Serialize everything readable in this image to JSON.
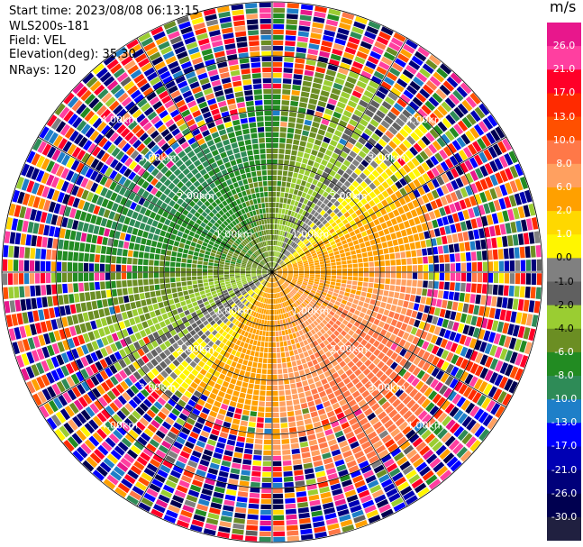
{
  "header": {
    "start_time": "Start time: 2023/08/08 06:13:15",
    "instrument": "WLS200s-181",
    "field": "Field: VEL",
    "elevation": "Elevation(deg): 35.30",
    "nrays": "NRays: 120"
  },
  "colorbar": {
    "unit": "m/s",
    "ticks": [
      "26.0",
      "21.0",
      "17.0",
      "13.0",
      "10.0",
      "8.0",
      "6.0",
      "2.0",
      "1.0",
      "0.0",
      "-1.0",
      "-2.0",
      "-4.0",
      "-6.0",
      "-8.0",
      "-10.0",
      "-13.0",
      "-17.0",
      "-21.0",
      "-26.0",
      "-30.0"
    ],
    "colors": [
      "#e8178c",
      "#ff3fa0",
      "#ff0028",
      "#ff2a00",
      "#ff5000",
      "#ff7848",
      "#ffa060",
      "#ffa000",
      "#ffd800",
      "#fff600",
      "#808080",
      "#606060",
      "#9acd32",
      "#6b8e23",
      "#228b22",
      "#2e8b57",
      "#1e7fc8",
      "#0000ff",
      "#0000b4",
      "#00007a",
      "#000050",
      "#202040"
    ]
  },
  "chart_data": {
    "type": "heatmap",
    "subtype": "PPI velocity scan (polar)",
    "field": "VEL",
    "units": "m/s",
    "nrays": 120,
    "elevation_deg": 35.3,
    "range_rings_km": [
      1.0,
      2.0,
      3.0,
      4.0
    ],
    "ring_labels": [
      "1.00km",
      "2.00km",
      "3.00km",
      "4.00km"
    ],
    "max_range_km": 5.0,
    "color_limits": [
      -30.0,
      26.0
    ],
    "structure": "Coherent wind field within ~3 km: negative velocities (blue/green, -10 to -4 m/s) toward north-west, positive velocities (yellow/orange, 2 to 10 m/s) toward south-east, zero line running SW to NE; noisy random values beyond ~3.5 km"
  }
}
